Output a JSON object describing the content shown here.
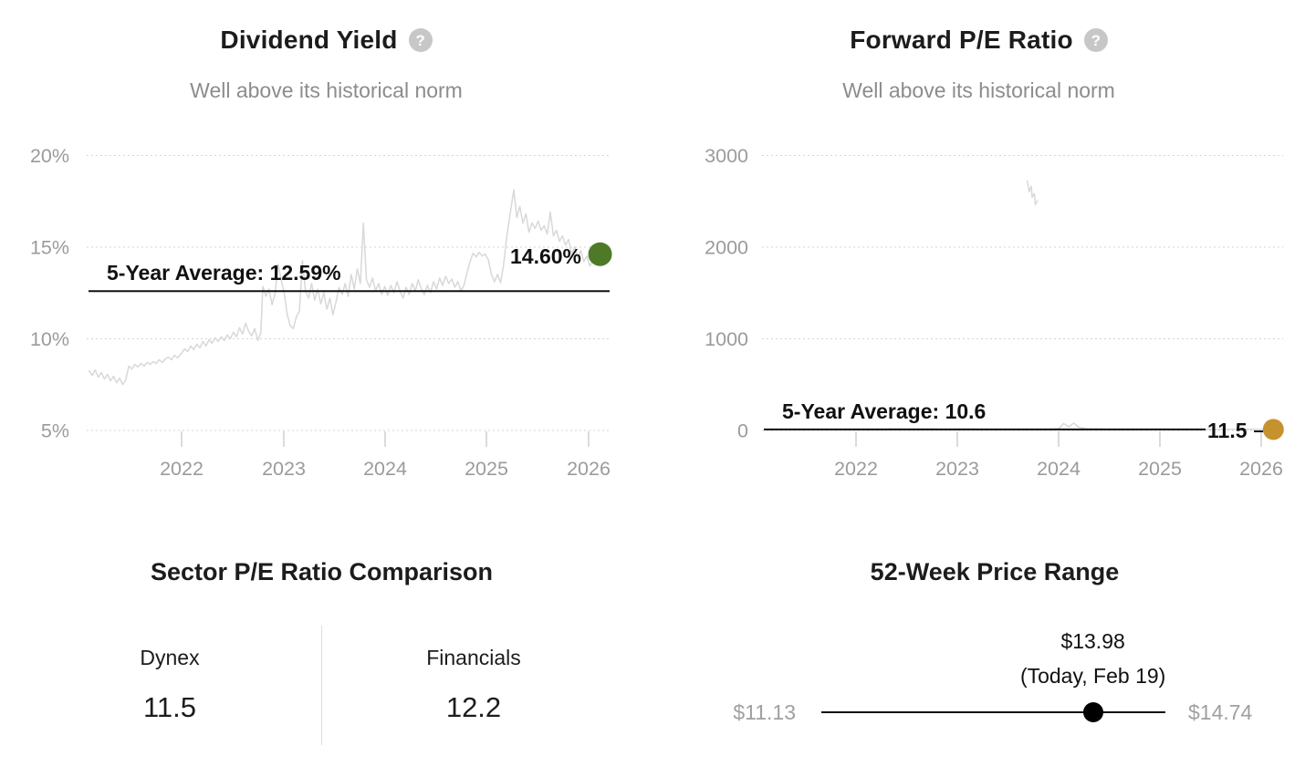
{
  "icons": {
    "help_glyph": "?"
  },
  "chart_data": [
    {
      "type": "line",
      "title": "Dividend Yield",
      "subtitle": "Well above its historical norm",
      "unit": "%",
      "line_color": "#d8d8d8",
      "y_ticks": [
        20,
        15,
        10,
        5
      ],
      "y_tick_labels": [
        "20%",
        "15%",
        "10%",
        "5%"
      ],
      "x_ticks": [
        2022,
        2023,
        2024,
        2025,
        2026
      ],
      "x_tick_labels": [
        "2022",
        "2023",
        "2024",
        "2025",
        "2026"
      ],
      "x_range": [
        2021.09,
        2026.2
      ],
      "ylim": [
        5,
        20
      ],
      "grid": "dotted-horizontal",
      "average": {
        "label": "5-Year Average: 12.59%",
        "value": 12.59
      },
      "current": {
        "label": "14.60%",
        "value": 14.6,
        "dot_color": "#4e7a28"
      },
      "series": [
        [
          2021.09,
          8.25
        ],
        [
          2021.12,
          8.0
        ],
        [
          2021.15,
          8.3
        ],
        [
          2021.18,
          7.9
        ],
        [
          2021.21,
          8.15
        ],
        [
          2021.24,
          7.8
        ],
        [
          2021.27,
          8.05
        ],
        [
          2021.3,
          7.7
        ],
        [
          2021.33,
          7.95
        ],
        [
          2021.36,
          7.6
        ],
        [
          2021.39,
          7.85
        ],
        [
          2021.42,
          7.5
        ],
        [
          2021.45,
          7.75
        ],
        [
          2021.48,
          8.5
        ],
        [
          2021.51,
          8.35
        ],
        [
          2021.54,
          8.6
        ],
        [
          2021.57,
          8.45
        ],
        [
          2021.6,
          8.65
        ],
        [
          2021.63,
          8.5
        ],
        [
          2021.66,
          8.7
        ],
        [
          2021.69,
          8.6
        ],
        [
          2021.72,
          8.75
        ],
        [
          2021.75,
          8.65
        ],
        [
          2021.78,
          8.85
        ],
        [
          2021.81,
          8.7
        ],
        [
          2021.84,
          8.9
        ],
        [
          2021.87,
          9.0
        ],
        [
          2021.9,
          8.85
        ],
        [
          2021.93,
          9.1
        ],
        [
          2021.96,
          8.95
        ],
        [
          2022.0,
          9.2
        ],
        [
          2022.03,
          9.45
        ],
        [
          2022.06,
          9.3
        ],
        [
          2022.09,
          9.6
        ],
        [
          2022.12,
          9.4
        ],
        [
          2022.15,
          9.7
        ],
        [
          2022.18,
          9.5
        ],
        [
          2022.21,
          9.85
        ],
        [
          2022.24,
          9.6
        ],
        [
          2022.27,
          9.95
        ],
        [
          2022.3,
          9.75
        ],
        [
          2022.33,
          10.05
        ],
        [
          2022.36,
          9.85
        ],
        [
          2022.39,
          10.1
        ],
        [
          2022.42,
          9.9
        ],
        [
          2022.45,
          10.2
        ],
        [
          2022.48,
          10.0
        ],
        [
          2022.51,
          10.35
        ],
        [
          2022.54,
          10.1
        ],
        [
          2022.57,
          10.6
        ],
        [
          2022.6,
          10.25
        ],
        [
          2022.63,
          10.85
        ],
        [
          2022.66,
          10.4
        ],
        [
          2022.69,
          10.15
        ],
        [
          2022.72,
          10.55
        ],
        [
          2022.75,
          9.9
        ],
        [
          2022.78,
          10.3
        ],
        [
          2022.8,
          12.85
        ],
        [
          2022.83,
          12.3
        ],
        [
          2022.86,
          12.7
        ],
        [
          2022.89,
          11.85
        ],
        [
          2022.92,
          12.45
        ],
        [
          2022.95,
          14.05
        ],
        [
          2022.98,
          13.2
        ],
        [
          2023.01,
          12.5
        ],
        [
          2023.04,
          11.3
        ],
        [
          2023.07,
          10.7
        ],
        [
          2023.1,
          10.55
        ],
        [
          2023.13,
          11.2
        ],
        [
          2023.16,
          11.5
        ],
        [
          2023.19,
          14.25
        ],
        [
          2023.22,
          12.6
        ],
        [
          2023.25,
          12.2
        ],
        [
          2023.28,
          13.0
        ],
        [
          2023.31,
          12.1
        ],
        [
          2023.34,
          12.7
        ],
        [
          2023.37,
          11.9
        ],
        [
          2023.4,
          12.5
        ],
        [
          2023.43,
          11.6
        ],
        [
          2023.46,
          12.2
        ],
        [
          2023.49,
          11.3
        ],
        [
          2023.52,
          12.0
        ],
        [
          2023.55,
          12.8
        ],
        [
          2023.58,
          12.4
        ],
        [
          2023.61,
          13.0
        ],
        [
          2023.64,
          12.3
        ],
        [
          2023.67,
          13.5
        ],
        [
          2023.7,
          12.7
        ],
        [
          2023.73,
          13.8
        ],
        [
          2023.76,
          13.0
        ],
        [
          2023.79,
          16.3
        ],
        [
          2023.82,
          13.2
        ],
        [
          2023.85,
          12.8
        ],
        [
          2023.88,
          13.3
        ],
        [
          2023.91,
          12.6
        ],
        [
          2023.94,
          13.0
        ],
        [
          2023.97,
          12.4
        ],
        [
          2024.0,
          12.85
        ],
        [
          2024.03,
          12.35
        ],
        [
          2024.06,
          12.9
        ],
        [
          2024.09,
          12.5
        ],
        [
          2024.12,
          13.1
        ],
        [
          2024.15,
          12.6
        ],
        [
          2024.18,
          12.2
        ],
        [
          2024.21,
          12.8
        ],
        [
          2024.24,
          12.4
        ],
        [
          2024.27,
          13.0
        ],
        [
          2024.3,
          12.6
        ],
        [
          2024.33,
          13.2
        ],
        [
          2024.36,
          12.7
        ],
        [
          2024.39,
          12.4
        ],
        [
          2024.42,
          12.9
        ],
        [
          2024.45,
          12.5
        ],
        [
          2024.48,
          13.1
        ],
        [
          2024.51,
          12.7
        ],
        [
          2024.54,
          13.3
        ],
        [
          2024.57,
          12.9
        ],
        [
          2024.6,
          13.4
        ],
        [
          2024.63,
          13.0
        ],
        [
          2024.66,
          13.25
        ],
        [
          2024.69,
          12.8
        ],
        [
          2024.72,
          13.1
        ],
        [
          2024.75,
          12.6
        ],
        [
          2024.78,
          12.9
        ],
        [
          2024.81,
          13.6
        ],
        [
          2024.84,
          14.2
        ],
        [
          2024.87,
          14.65
        ],
        [
          2024.9,
          14.45
        ],
        [
          2024.93,
          14.7
        ],
        [
          2024.96,
          14.5
        ],
        [
          2024.99,
          14.6
        ],
        [
          2025.02,
          14.3
        ],
        [
          2025.05,
          13.5
        ],
        [
          2025.08,
          13.1
        ],
        [
          2025.11,
          13.5
        ],
        [
          2025.14,
          13.05
        ],
        [
          2025.17,
          14.0
        ],
        [
          2025.2,
          15.5
        ],
        [
          2025.24,
          17.0
        ],
        [
          2025.27,
          18.1
        ],
        [
          2025.3,
          16.6
        ],
        [
          2025.33,
          17.2
        ],
        [
          2025.36,
          16.3
        ],
        [
          2025.39,
          16.8
        ],
        [
          2025.42,
          15.8
        ],
        [
          2025.45,
          16.3
        ],
        [
          2025.48,
          16.0
        ],
        [
          2025.51,
          16.4
        ],
        [
          2025.54,
          15.9
        ],
        [
          2025.57,
          16.15
        ],
        [
          2025.6,
          15.7
        ],
        [
          2025.63,
          16.9
        ],
        [
          2025.66,
          15.6
        ],
        [
          2025.69,
          15.9
        ],
        [
          2025.72,
          15.3
        ],
        [
          2025.75,
          15.6
        ],
        [
          2025.78,
          15.1
        ],
        [
          2025.81,
          15.4
        ],
        [
          2025.84,
          14.6
        ],
        [
          2025.87,
          15.0
        ],
        [
          2025.9,
          14.4
        ],
        [
          2025.93,
          14.8
        ],
        [
          2025.96,
          14.2
        ],
        [
          2025.99,
          14.5
        ],
        [
          2026.02,
          13.95
        ],
        [
          2026.05,
          14.3
        ],
        [
          2026.08,
          14.1
        ],
        [
          2026.12,
          14.6
        ]
      ]
    },
    {
      "type": "line",
      "title": "Forward P/E Ratio",
      "subtitle": "Well above its historical norm",
      "line_color": "#d8d8d8",
      "y_ticks": [
        3000,
        2000,
        1000,
        0
      ],
      "y_tick_labels": [
        "3000",
        "2000",
        "1000",
        "0"
      ],
      "x_ticks": [
        2022,
        2023,
        2024,
        2025,
        2026
      ],
      "x_tick_labels": [
        "2022",
        "2023",
        "2024",
        "2025",
        "2026"
      ],
      "x_range": [
        2021.09,
        2026.2
      ],
      "ylim": [
        0,
        3000
      ],
      "grid": "dotted-horizontal",
      "average": {
        "label": "5-Year Average: 10.6",
        "value": 10.6
      },
      "current": {
        "label": "11.5",
        "value": 11.5,
        "dot_color": "#c6922f"
      },
      "segments": [
        [
          [
            2023.69,
            2720
          ],
          [
            2023.71,
            2600
          ],
          [
            2023.73,
            2660
          ],
          [
            2023.74,
            2540
          ],
          [
            2023.76,
            2580
          ],
          [
            2023.77,
            2460
          ],
          [
            2023.79,
            2500
          ]
        ],
        [
          [
            2022.32,
            18
          ],
          [
            2022.5,
            15
          ],
          [
            2022.7,
            16
          ],
          [
            2022.9,
            13
          ],
          [
            2023.1,
            15
          ],
          [
            2023.3,
            12
          ],
          [
            2023.5,
            14
          ],
          [
            2023.7,
            11
          ],
          [
            2023.9,
            13
          ],
          [
            2024.0,
            20
          ],
          [
            2024.05,
            75
          ],
          [
            2024.1,
            40
          ],
          [
            2024.15,
            80
          ],
          [
            2024.2,
            35
          ],
          [
            2024.28,
            18
          ],
          [
            2024.5,
            14
          ],
          [
            2024.8,
            13
          ],
          [
            2025.1,
            14
          ],
          [
            2025.4,
            12
          ],
          [
            2025.7,
            13
          ],
          [
            2026.0,
            12
          ],
          [
            2026.12,
            11.5
          ]
        ]
      ]
    },
    {
      "type": "table",
      "title": "Sector P/E Ratio Comparison",
      "columns": [
        {
          "label": "Dynex",
          "value": "11.5"
        },
        {
          "label": "Financials",
          "value": "12.2"
        }
      ]
    },
    {
      "type": "range",
      "title": "52-Week Price Range",
      "low": 11.13,
      "high": 14.74,
      "current": 13.98,
      "low_label": "$11.13",
      "high_label": "$14.74",
      "current_label": "$13.98",
      "current_sub": "(Today, Feb 19)"
    }
  ]
}
